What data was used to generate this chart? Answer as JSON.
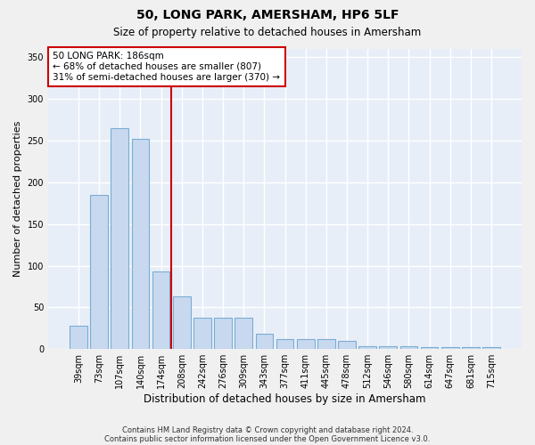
{
  "title": "50, LONG PARK, AMERSHAM, HP6 5LF",
  "subtitle": "Size of property relative to detached houses in Amersham",
  "xlabel": "Distribution of detached houses by size in Amersham",
  "ylabel": "Number of detached properties",
  "bar_color": "#c8d9ef",
  "bar_edge_color": "#7aadd4",
  "background_color": "#e8eef8",
  "grid_color": "#ffffff",
  "categories": [
    "39sqm",
    "73sqm",
    "107sqm",
    "140sqm",
    "174sqm",
    "208sqm",
    "242sqm",
    "276sqm",
    "309sqm",
    "343sqm",
    "377sqm",
    "411sqm",
    "445sqm",
    "478sqm",
    "512sqm",
    "546sqm",
    "580sqm",
    "614sqm",
    "647sqm",
    "681sqm",
    "715sqm"
  ],
  "values": [
    28,
    185,
    265,
    252,
    93,
    63,
    38,
    38,
    38,
    18,
    12,
    12,
    12,
    10,
    3,
    3,
    3,
    2,
    2,
    2,
    2
  ],
  "ylim": [
    0,
    360
  ],
  "yticks": [
    0,
    50,
    100,
    150,
    200,
    250,
    300,
    350
  ],
  "property_label": "50 LONG PARK: 186sqm",
  "annotation_line1": "← 68% of detached houses are smaller (807)",
  "annotation_line2": "31% of semi-detached houses are larger (370) →",
  "annotation_box_color": "#ffffff",
  "annotation_box_edge_color": "#cc0000",
  "vline_color": "#cc0000",
  "vline_x_index": 4.5,
  "footer_line1": "Contains HM Land Registry data © Crown copyright and database right 2024.",
  "footer_line2": "Contains public sector information licensed under the Open Government Licence v3.0.",
  "fig_bg": "#f0f0f0"
}
